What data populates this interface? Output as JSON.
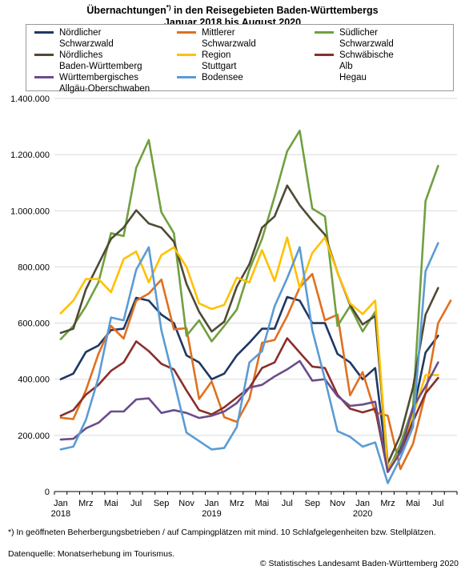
{
  "title_line1": "Übernachtungen",
  "title_sup": "*)",
  "title_line1_rest": " in den Reisegebieten Baden-Württembergs",
  "title_line2": "Januar 2018 bis August 2020",
  "footnote": "*) In geöffneten Beherbergungsbetrieben / auf Campingplätzen mit mind. 10 Schlafgelegenheiten bzw. Stellplätzen.",
  "source": "Datenquelle: Monatserhebung im Tourismus.",
  "copyright": "© Statistisches Landesamt Baden-Württemberg 2020",
  "chart_data": {
    "type": "line",
    "title": "Übernachtungen*) in den Reisegebieten Baden-Württembergs Januar 2018 bis August 2020",
    "ylim": [
      0,
      1400000
    ],
    "yticks": [
      0,
      200000,
      400000,
      600000,
      800000,
      1000000,
      1200000,
      1400000
    ],
    "ytick_labels": [
      "0",
      "200.000",
      "400.000",
      "600.000",
      "800.000",
      "1.000.000",
      "1.200.000",
      "1.400.000"
    ],
    "x_tick_labels": [
      "Jan",
      "Mrz",
      "Mai",
      "Jul",
      "Sep",
      "Nov",
      "Jan",
      "Mrz",
      "Mai",
      "Jul",
      "Sep",
      "Nov",
      "Jan",
      "Mrz",
      "Mai",
      "Jul"
    ],
    "x_year_labels": [
      "2018",
      "2019",
      "2020"
    ],
    "grid": true,
    "legend_position": "top",
    "n_months": 32,
    "series": [
      {
        "name": "Nördlicher\nSchwarzwald",
        "color": "#1f3864",
        "values": [
          400000,
          420000,
          497000,
          520000,
          575000,
          580000,
          690000,
          680000,
          630000,
          600000,
          485000,
          460000,
          400000,
          420000,
          485000,
          530000,
          580000,
          580000,
          693000,
          680000,
          600000,
          600000,
          490000,
          460000,
          400000,
          440000,
          80000,
          150000,
          280000,
          495000,
          555000,
          null
        ]
      },
      {
        "name": "Mittlerer\nSchwarzwald",
        "color": "#e07020",
        "values": [
          263000,
          258000,
          360000,
          490000,
          590000,
          545000,
          680000,
          705000,
          755000,
          578000,
          582000,
          330000,
          392000,
          265000,
          248000,
          330000,
          530000,
          540000,
          625000,
          727000,
          775000,
          610000,
          630000,
          343000,
          425000,
          282000,
          270000,
          80000,
          170000,
          350000,
          600000,
          680000
        ]
      },
      {
        "name": "Südlicher\nSchwarzwald",
        "color": "#70a040",
        "values": [
          543000,
          590000,
          660000,
          745000,
          920000,
          910000,
          1153000,
          1252000,
          995000,
          920000,
          555000,
          610000,
          535000,
          590000,
          648000,
          790000,
          900000,
          1050000,
          1212000,
          1285000,
          1008000,
          980000,
          590000,
          660000,
          570000,
          640000,
          70000,
          170000,
          300000,
          1035000,
          1160000,
          null
        ]
      },
      {
        "name": "Nördliches\nBaden-Württemberg",
        "color": "#4f4a34",
        "values": [
          565000,
          580000,
          720000,
          810000,
          900000,
          940000,
          1002000,
          955000,
          940000,
          890000,
          740000,
          640000,
          570000,
          605000,
          730000,
          810000,
          940000,
          980000,
          1090000,
          1020000,
          965000,
          915000,
          780000,
          665000,
          595000,
          625000,
          100000,
          200000,
          370000,
          630000,
          725000,
          null
        ]
      },
      {
        "name": "Region\nStuttgart",
        "color": "#ffc000",
        "values": [
          635000,
          680000,
          757000,
          757000,
          710000,
          828000,
          855000,
          745000,
          842000,
          870000,
          800000,
          670000,
          650000,
          665000,
          762000,
          745000,
          860000,
          750000,
          905000,
          725000,
          850000,
          905000,
          780000,
          670000,
          632000,
          680000,
          80000,
          140000,
          270000,
          415000,
          415000,
          null
        ]
      },
      {
        "name": "Schwäbische\nAlb",
        "color": "#8b2e2a",
        "values": [
          270000,
          290000,
          345000,
          380000,
          430000,
          460000,
          535000,
          500000,
          455000,
          435000,
          360000,
          290000,
          275000,
          300000,
          335000,
          370000,
          440000,
          460000,
          546000,
          495000,
          445000,
          440000,
          345000,
          295000,
          282000,
          295000,
          70000,
          140000,
          250000,
          350000,
          405000,
          null
        ]
      },
      {
        "name": "Württembergisches\nAllgäu-Oberschwaben",
        "color": "#6a4d8c",
        "values": [
          185000,
          188000,
          225000,
          245000,
          285000,
          285000,
          328000,
          332000,
          280000,
          290000,
          280000,
          262000,
          270000,
          285000,
          315000,
          370000,
          380000,
          410000,
          435000,
          465000,
          395000,
          400000,
          340000,
          305000,
          310000,
          320000,
          70000,
          140000,
          300000,
          375000,
          460000,
          null
        ]
      },
      {
        "name": "Bodensee",
        "color": "#5b9bd5",
        "values": [
          150000,
          160000,
          255000,
          405000,
          620000,
          610000,
          790000,
          870000,
          575000,
          395000,
          210000,
          180000,
          150000,
          155000,
          230000,
          460000,
          500000,
          660000,
          760000,
          870000,
          575000,
          400000,
          215000,
          195000,
          160000,
          175000,
          30000,
          120000,
          230000,
          785000,
          885000,
          null
        ]
      },
      {
        "name": "Hegau",
        "color": "#ffffff",
        "values": []
      }
    ]
  }
}
